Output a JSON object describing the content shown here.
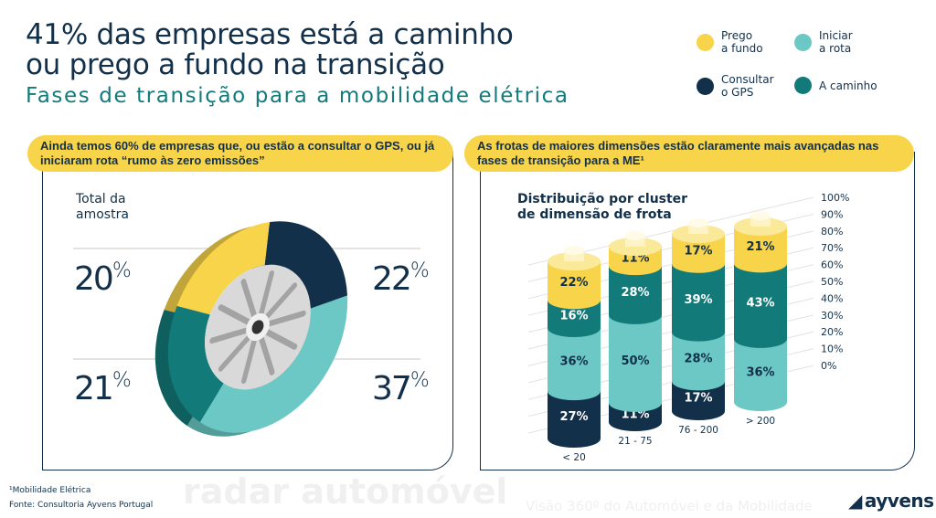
{
  "header": {
    "title_line1": "41% das empresas está a caminho",
    "title_line2": "ou prego a fundo na transição",
    "subtitle": "Fases de transição para a mobilidade elétrica"
  },
  "legend": [
    {
      "label_line1": "Prego",
      "label_line2": "a fundo",
      "color": "#f7d44a"
    },
    {
      "label_line1": "Iniciar",
      "label_line2": "a rota",
      "color": "#6cc8c4"
    },
    {
      "label_line1": "Consultar",
      "label_line2": "o GPS",
      "color": "#12304a"
    },
    {
      "label_line1": "A caminho",
      "label_line2": "",
      "color": "#137a7a"
    }
  ],
  "left_panel": {
    "banner": "Ainda temos 60% de empresas que, ou estão a consultar o GPS, ou já iniciaram rota “rumo às zero emissões”",
    "label": "Total da amostra"
  },
  "right_panel": {
    "banner": "As frotas de maiores dimensões estão claramente mais avançadas nas fases de transição para a ME¹",
    "label_line1": "Distribuição por cluster",
    "label_line2": "de dimensão de frota"
  },
  "chart_data": [
    {
      "type": "pie",
      "title": "Total da amostra",
      "slices": [
        {
          "series": "Prego a fundo",
          "value": 20,
          "label": "20",
          "color": "#f7d44a"
        },
        {
          "series": "Consultar o GPS",
          "value": 22,
          "label": "22",
          "color": "#12304a"
        },
        {
          "series": "Iniciar a rota",
          "value": 37,
          "label": "37",
          "color": "#6cc8c4"
        },
        {
          "series": "A caminho",
          "value": 21,
          "label": "21",
          "color": "#137a7a"
        }
      ],
      "unit": "%"
    },
    {
      "type": "bar",
      "stacked": true,
      "title": "Distribuição por cluster de dimensão de frota",
      "categories": [
        "< 20",
        "21 - 75",
        "76 - 200",
        "> 200"
      ],
      "series": [
        {
          "name": "Consultar o GPS",
          "values": [
            27,
            11,
            17,
            null
          ],
          "color": "#12304a"
        },
        {
          "name": "Iniciar a rota",
          "values": [
            36,
            50,
            28,
            36
          ],
          "color": "#6cc8c4"
        },
        {
          "name": "A caminho",
          "values": [
            16,
            28,
            39,
            43
          ],
          "color": "#137a7a"
        },
        {
          "name": "Prego a fundo",
          "values": [
            22,
            11,
            17,
            21
          ],
          "color": "#f7d44a"
        }
      ],
      "yticks": [
        "100%",
        "90%",
        "80%",
        "70%",
        "60%",
        "50%",
        "40%",
        "30%",
        "20%",
        "10%",
        "0%"
      ],
      "ylim": [
        0,
        100
      ],
      "grid": true
    }
  ],
  "footer": {
    "note": "¹Mobilidade Elétrica",
    "source": "Fonte: Consultoria Ayvens Portugal",
    "logo": "ayvens",
    "watermark_line1": "radar automóvel",
    "watermark_line2": "Visão 360º do Automóvel e da Mobilidade"
  }
}
